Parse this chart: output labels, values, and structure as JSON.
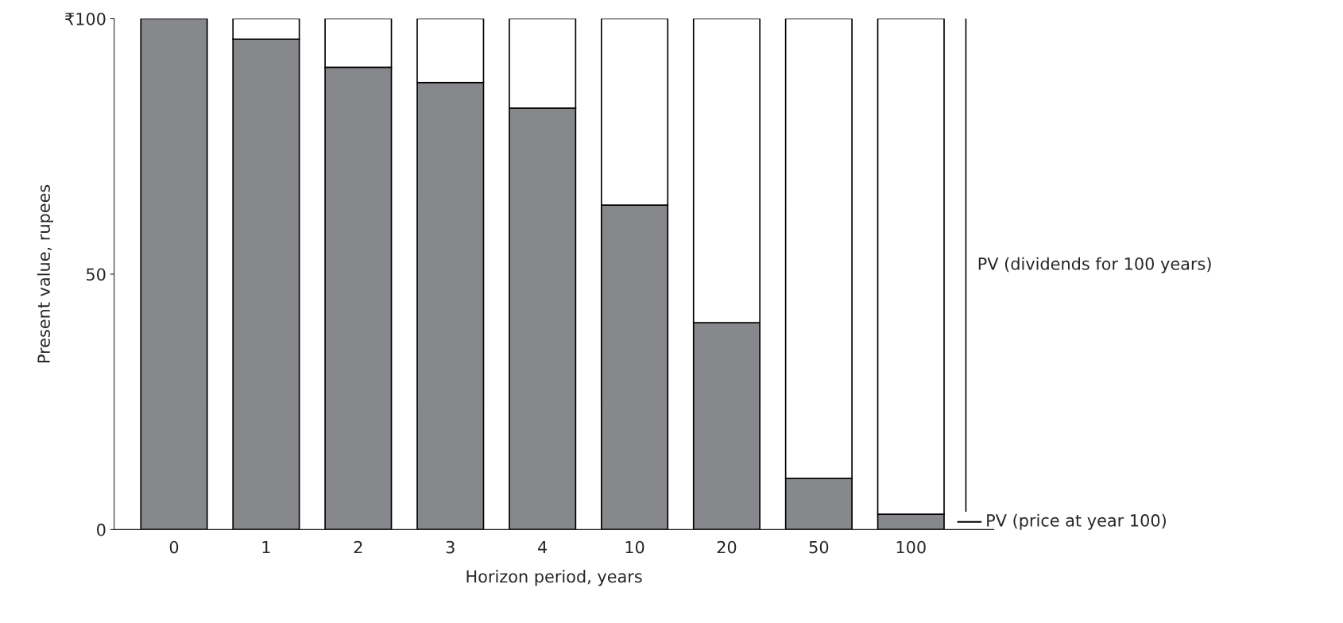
{
  "chart_data": {
    "type": "bar",
    "stacked": true,
    "xlabel": "Horizon period, years",
    "ylabel": "Present value, rupees",
    "categories": [
      "0",
      "1",
      "2",
      "3",
      "4",
      "10",
      "20",
      "50",
      "100"
    ],
    "series": [
      {
        "color": "#87888c",
        "values": [
          100,
          96,
          90.5,
          87.5,
          82.5,
          63.5,
          40.5,
          10,
          3
        ]
      },
      {
        "color": "#ffffff",
        "values": [
          null,
          4,
          9.5,
          12.5,
          17.5,
          36.5,
          59.5,
          90,
          97
        ]
      }
    ],
    "ylim": [
      0,
      100
    ],
    "yticks": [
      0,
      50,
      {
        "value": 100,
        "label": "₹100"
      }
    ],
    "grid": false,
    "legend": false,
    "annotations": [
      "PV (dividends for 100 years)",
      "PV (price at year 100)"
    ]
  }
}
